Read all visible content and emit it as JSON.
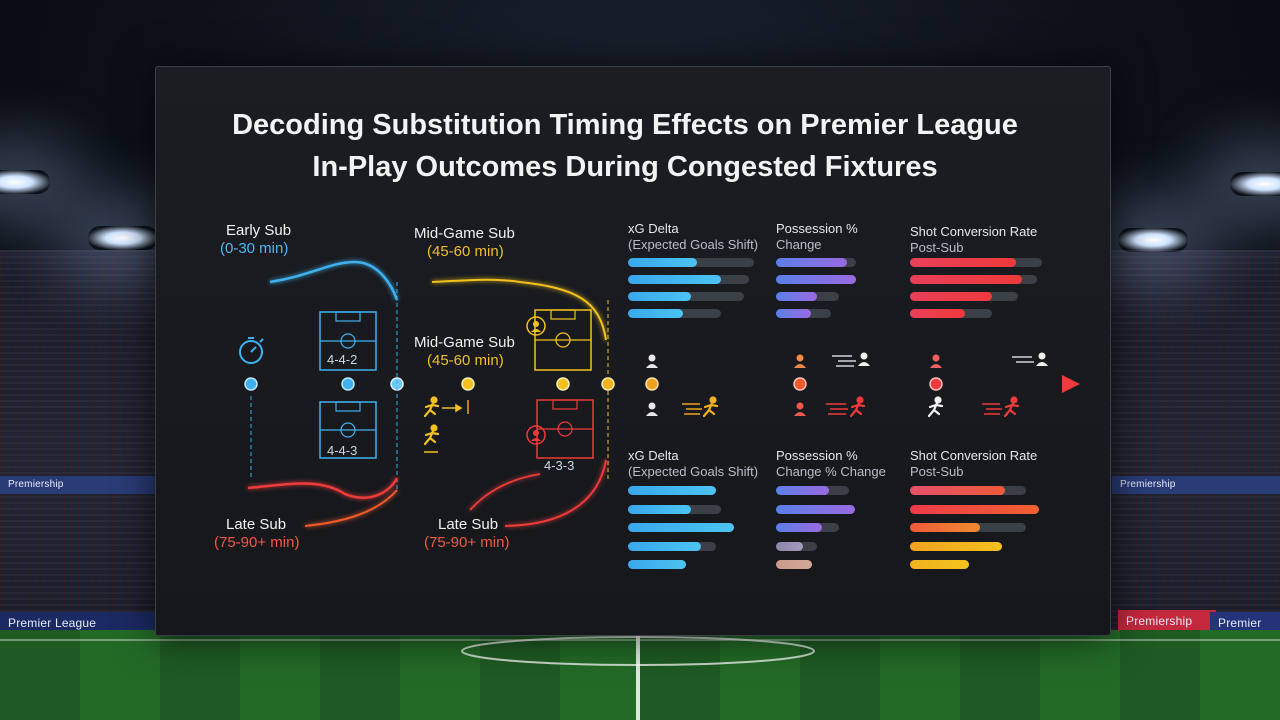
{
  "title": {
    "line1": "Decoding Substitution Timing Effects on Premier League",
    "line2": "In-Play Outcomes During Congested Fixtures"
  },
  "timeline": {
    "early_sub": {
      "label": "Early Sub",
      "range": "(0-30 min)"
    },
    "mid_sub_top": {
      "label": "Mid-Game Sub",
      "range": "(45-60 min)"
    },
    "mid_sub_middle": {
      "label": "Mid-Game Sub",
      "range": "(45-60 min)"
    },
    "late_sub_left": {
      "label": "Late Sub",
      "range": "(75-90+ min)"
    },
    "late_sub_right": {
      "label": "Late Sub",
      "range": "(75-90+ min)"
    },
    "formations": [
      "4-4-2",
      "4-4-3",
      "4-3-3"
    ]
  },
  "metrics_top": [
    {
      "title": "xG Delta",
      "subtitle": "(Expected Goals Shift)",
      "bars": [
        0.55,
        0.74,
        0.5,
        0.44
      ],
      "track": [
        1.0,
        0.96,
        0.92,
        0.74
      ]
    },
    {
      "title": "Possession %",
      "subtitle": "Change",
      "bars": [
        0.7,
        0.78,
        0.4,
        0.34
      ],
      "track": [
        0.78,
        0.78,
        0.62,
        0.54
      ]
    },
    {
      "title": "Shot Conversion Rate",
      "subtitle": "Post-Sub",
      "bars": [
        0.8,
        0.85,
        0.62,
        0.42
      ],
      "track": [
        1.0,
        0.96,
        0.82,
        0.62
      ]
    }
  ],
  "metrics_bottom": [
    {
      "title": "xG Delta",
      "subtitle": "(Expected Goals Shift)",
      "bars": [
        0.7,
        0.5,
        0.84,
        0.58,
        0.46
      ],
      "track": [
        0.7,
        0.74,
        0.84,
        0.7,
        0.46
      ]
    },
    {
      "title": "Possession %",
      "subtitle": "Change % Change",
      "bars": [
        0.52,
        0.77,
        0.45,
        0.26,
        0.35
      ],
      "track": [
        0.72,
        0.77,
        0.62,
        0.4,
        0.35
      ]
    },
    {
      "title": "Shot Conversion Rate",
      "subtitle": "Post-Sub",
      "bars": [
        0.72,
        0.98,
        0.53,
        0.7,
        0.45
      ],
      "track": [
        0.88,
        0.98,
        0.88,
        0.7,
        0.45
      ]
    }
  ],
  "colors": {
    "blue": "#3fb1ee",
    "yellow": "#f2c11f",
    "orange": "#f08a24",
    "red": "#ee3a3a",
    "purple": "#7a6ee6"
  },
  "ads": {
    "left_bottom": "Premier League",
    "left_top": "Premiership",
    "right_red": "Premiership",
    "right_blue": "Premier",
    "right_top": "Premiership"
  }
}
